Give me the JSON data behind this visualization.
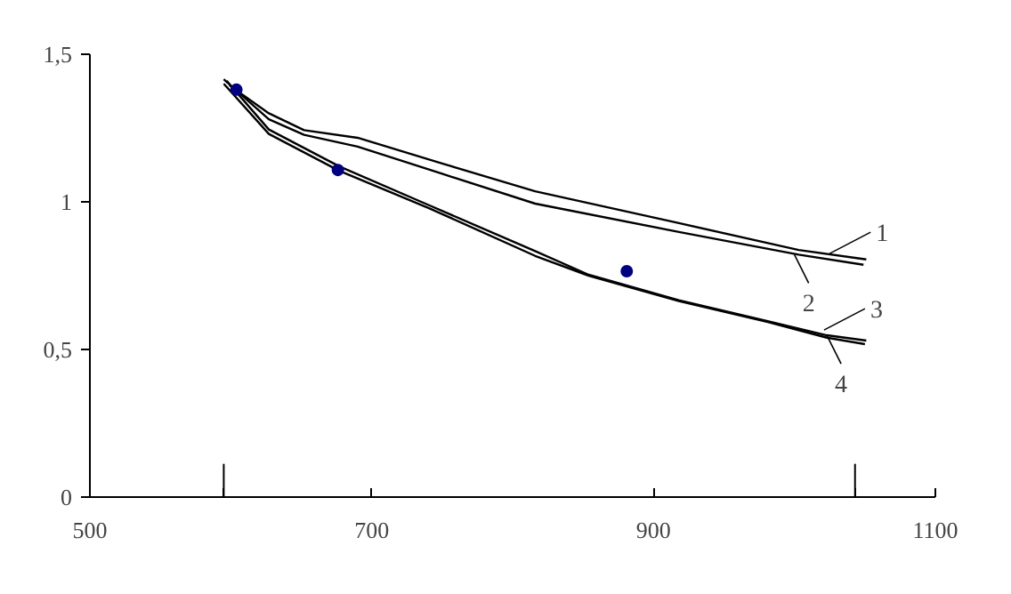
{
  "chart_data": {
    "type": "line",
    "xlim": [
      500,
      1100
    ],
    "ylim": [
      0,
      1.5
    ],
    "xticks": [
      500,
      {
        "value": 595,
        "label": null
      },
      700,
      900,
      {
        "value": 1043,
        "label": null
      },
      1100
    ],
    "yticks": [
      0,
      {
        "value": 0.5,
        "label": "0,5"
      },
      1,
      {
        "value": 1.5,
        "label": "1,5"
      }
    ],
    "grid": false,
    "marker": "none",
    "line_style": "solid",
    "series": [
      {
        "color": "#000000",
        "x": [
          599,
          627,
          652,
          690,
          750,
          816,
          918,
          1003,
          1051
        ],
        "values": [
          1.395,
          1.3,
          1.243,
          1.217,
          1.13,
          1.036,
          0.928,
          0.837,
          0.805
        ]
      },
      {
        "color": "#000000",
        "x": [
          595,
          627,
          652,
          690,
          750,
          816,
          918,
          1003,
          1049
        ],
        "values": [
          1.415,
          1.28,
          1.227,
          1.187,
          1.095,
          0.994,
          0.898,
          0.821,
          0.787
        ]
      },
      {
        "color": "#000000",
        "x": [
          597,
          627,
          677,
          741,
          816,
          854,
          918,
          981,
          1023,
          1051
        ],
        "values": [
          1.41,
          1.245,
          1.12,
          0.988,
          0.833,
          0.753,
          0.667,
          0.596,
          0.548,
          0.53
        ]
      },
      {
        "color": "#000000",
        "x": [
          595,
          627,
          677,
          741,
          816,
          854,
          918,
          981,
          1023,
          1050
        ],
        "values": [
          1.4,
          1.23,
          1.105,
          0.978,
          0.817,
          0.75,
          0.664,
          0.593,
          0.54,
          0.518
        ]
      },
      {
        "type": "scatter",
        "color": "#000080",
        "marker": "circle",
        "x": [
          604,
          676,
          881
        ],
        "values": [
          1.38,
          1.108,
          0.765
        ]
      }
    ],
    "annotations": [
      {
        "text": "1",
        "x": 1025,
        "y": 0.825
      },
      {
        "text": "2",
        "x": 1000,
        "y": 0.821
      },
      {
        "text": "3",
        "x": 1021,
        "y": 0.566
      },
      {
        "text": "4",
        "x": 1023,
        "y": 0.548
      }
    ]
  }
}
